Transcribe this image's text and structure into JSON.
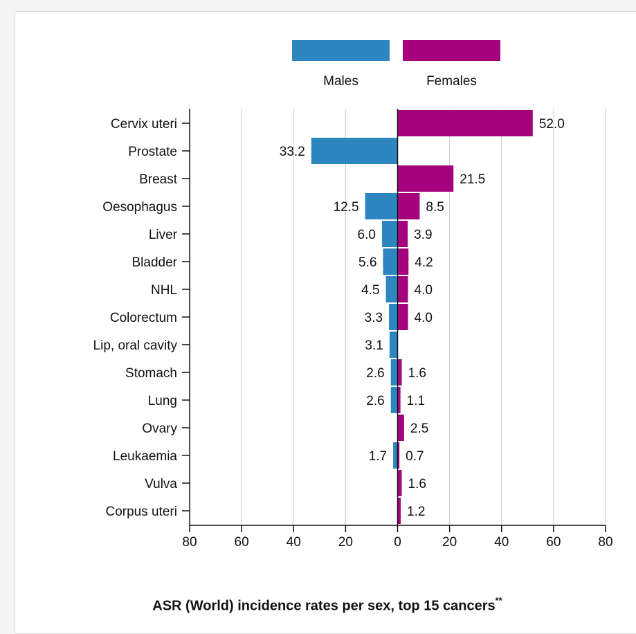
{
  "colors": {
    "males": "#2e86c1",
    "females": "#a5027d",
    "grid": "#cccccc",
    "axis": "#111111"
  },
  "caption": {
    "text": "ASR (World) incidence rates per sex, top 15 cancers",
    "marker": "**"
  },
  "chart_data": {
    "type": "bar",
    "orientation": "horizontal-diverging",
    "title": "ASR (World) incidence rates per sex, top 15 cancers",
    "legend": {
      "position": "top",
      "entries": [
        "Males",
        "Females"
      ]
    },
    "xlim": [
      -80,
      80
    ],
    "x_ticks": [
      80,
      60,
      40,
      20,
      0,
      20,
      40,
      60,
      80
    ],
    "grid": true,
    "categories": [
      "Cervix uteri",
      "Prostate",
      "Breast",
      "Oesophagus",
      "Liver",
      "Bladder",
      "NHL",
      "Colorectum",
      "Lip, oral cavity",
      "Stomach",
      "Lung",
      "Ovary",
      "Leukaemia",
      "Vulva",
      "Corpus uteri"
    ],
    "series": [
      {
        "name": "Males",
        "side": "left",
        "values": [
          null,
          33.2,
          null,
          12.5,
          6.0,
          5.6,
          4.5,
          3.3,
          3.1,
          2.6,
          2.6,
          null,
          1.7,
          null,
          null
        ],
        "labels": [
          "",
          "33.2",
          "",
          "12.5",
          "6.0",
          "5.6",
          "4.5",
          "3.3",
          "3.1",
          "2.6",
          "2.6",
          "",
          "1.7",
          "",
          ""
        ]
      },
      {
        "name": "Females",
        "side": "right",
        "values": [
          52.0,
          null,
          21.5,
          8.5,
          3.9,
          4.2,
          4.0,
          4.0,
          null,
          1.6,
          1.1,
          2.5,
          0.7,
          1.6,
          1.2
        ],
        "labels": [
          "52.0",
          "",
          "21.5",
          "8.5",
          "3.9",
          "4.2",
          "4.0",
          "4.0",
          "",
          "1.6",
          "1.1",
          "2.5",
          "0.7",
          "1.6",
          "1.2"
        ]
      }
    ]
  }
}
